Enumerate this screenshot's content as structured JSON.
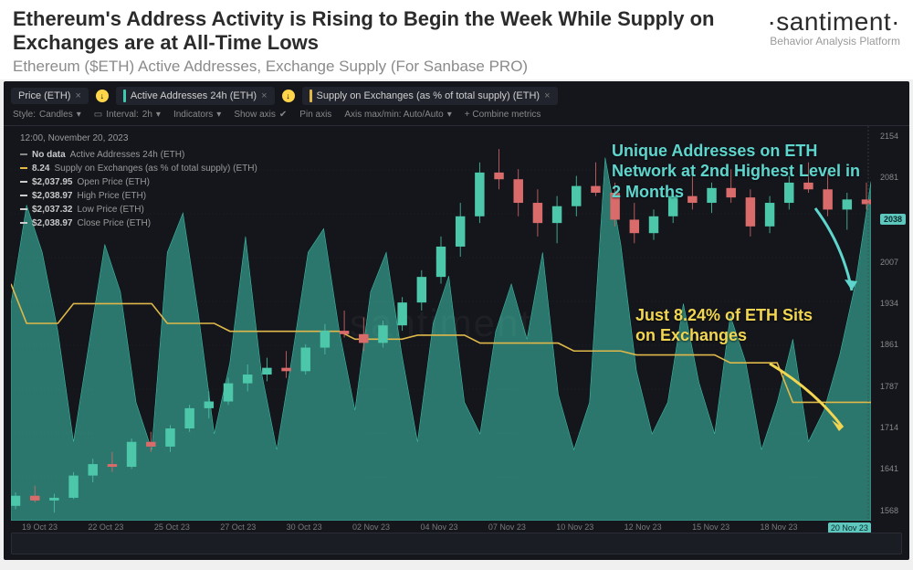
{
  "header": {
    "title": "Ethereum's Address Activity is Rising to Begin the Week While Supply on Exchanges are at All-Time Lows",
    "subtitle": "Ethereum ($ETH) Active Addresses, Exchange Supply (For Sanbase PRO)",
    "brand": "·santiment·",
    "brand_sub": "Behavior Analysis Platform"
  },
  "tabs": [
    {
      "label": "Price (ETH)",
      "color": "#3fc9b0"
    },
    {
      "label": "Active Addresses 24h (ETH)",
      "color": "#3fc9b0"
    },
    {
      "label": "Supply on Exchanges (as % of total supply) (ETH)",
      "color": "#e0b84a"
    }
  ],
  "toolbar": {
    "style_label": "Style:",
    "style_value": "Candles",
    "interval_label": "Interval:",
    "interval_value": "2h",
    "indicators": "Indicators",
    "show_axis": "Show axis",
    "pin_axis": "Pin axis",
    "axis_mm": "Axis max/min: Auto/Auto",
    "combine": "+ Combine metrics"
  },
  "tooltip": {
    "timestamp": "12:00, November 20, 2023",
    "rows": [
      {
        "key": "No data",
        "label": "Active Addresses 24h (ETH)",
        "color": "#888888"
      },
      {
        "key": "8.24",
        "label": "Supply on Exchanges (as % of total supply) (ETH)",
        "color": "#e0b84a"
      },
      {
        "key": "$2,037.95",
        "label": "Open Price (ETH)",
        "color": "#cccccc"
      },
      {
        "key": "$2,038.97",
        "label": "High Price (ETH)",
        "color": "#cccccc"
      },
      {
        "key": "$2,037.32",
        "label": "Low Price (ETH)",
        "color": "#cccccc"
      },
      {
        "key": "$2,038.97",
        "label": "Close Price (ETH)",
        "color": "#cccccc"
      }
    ]
  },
  "annotations": {
    "a1": "Unique Addresses on ETH Network at 2nd Highest Level in 2 Months",
    "a2": "Just 8.24% of ETH Sits on Exchanges"
  },
  "chart": {
    "type": "composite",
    "background_color": "#14161c",
    "grid_color": "#2a2d35",
    "y_ticks": [
      "2154",
      "2081",
      "2038",
      "2007",
      "1934",
      "1861",
      "1787",
      "1714",
      "1641",
      "1568"
    ],
    "y_current": "2038",
    "x_ticks": [
      "19 Oct 23",
      "22 Oct 23",
      "25 Oct 23",
      "27 Oct 23",
      "30 Oct 23",
      "02 Nov 23",
      "04 Nov 23",
      "07 Nov 23",
      "10 Nov 23",
      "12 Nov 23",
      "15 Nov 23",
      "18 Nov 23",
      "20 Nov 23"
    ],
    "addresses": {
      "name": "Active Addresses 24h",
      "color": "#3fc9b0",
      "fill_opacity": 0.55,
      "series": [
        55,
        80,
        68,
        48,
        20,
        45,
        70,
        58,
        30,
        18,
        68,
        78,
        52,
        22,
        40,
        72,
        38,
        18,
        42,
        68,
        74,
        48,
        28,
        58,
        68,
        42,
        20,
        50,
        62,
        30,
        22,
        48,
        60,
        46,
        68,
        32,
        18,
        30,
        92,
        70,
        38,
        22,
        30,
        55,
        35,
        22,
        52,
        40,
        18,
        30,
        46,
        20,
        28,
        42,
        60,
        86
      ]
    },
    "supply": {
      "name": "Supply on Exchanges %",
      "color": "#e0b84a",
      "line_width": 1.6,
      "series": [
        60,
        50,
        50,
        50,
        55,
        55,
        55,
        55,
        55,
        55,
        50,
        50,
        50,
        50,
        48,
        48,
        48,
        48,
        48,
        48,
        48,
        48,
        46,
        46,
        46,
        46,
        47,
        47,
        47,
        47,
        45,
        45,
        45,
        45,
        45,
        45,
        43,
        43,
        43,
        43,
        42,
        42,
        42,
        42,
        42,
        42,
        40,
        40,
        40,
        40,
        30,
        30,
        30,
        30,
        30,
        30
      ]
    },
    "price": {
      "name": "Price (ETH)",
      "up_color": "#4cc7aa",
      "down_color": "#d96b6b",
      "ylim": [
        1568,
        2154
      ],
      "candles": [
        [
          1590,
          1610,
          1585,
          1605
        ],
        [
          1605,
          1620,
          1595,
          1598
        ],
        [
          1598,
          1608,
          1580,
          1602
        ],
        [
          1602,
          1640,
          1600,
          1635
        ],
        [
          1635,
          1660,
          1625,
          1652
        ],
        [
          1652,
          1670,
          1640,
          1648
        ],
        [
          1648,
          1690,
          1645,
          1685
        ],
        [
          1685,
          1700,
          1670,
          1678
        ],
        [
          1678,
          1710,
          1670,
          1705
        ],
        [
          1705,
          1740,
          1700,
          1735
        ],
        [
          1735,
          1760,
          1720,
          1745
        ],
        [
          1745,
          1780,
          1740,
          1772
        ],
        [
          1772,
          1800,
          1760,
          1785
        ],
        [
          1785,
          1810,
          1775,
          1795
        ],
        [
          1795,
          1820,
          1780,
          1790
        ],
        [
          1790,
          1830,
          1785,
          1825
        ],
        [
          1825,
          1860,
          1815,
          1850
        ],
        [
          1850,
          1880,
          1840,
          1845
        ],
        [
          1845,
          1870,
          1820,
          1832
        ],
        [
          1832,
          1865,
          1825,
          1858
        ],
        [
          1858,
          1900,
          1850,
          1892
        ],
        [
          1892,
          1940,
          1880,
          1930
        ],
        [
          1930,
          1990,
          1920,
          1975
        ],
        [
          1975,
          2040,
          1960,
          2020
        ],
        [
          2020,
          2100,
          2010,
          2085
        ],
        [
          2085,
          2120,
          2060,
          2075
        ],
        [
          2075,
          2090,
          2020,
          2040
        ],
        [
          2040,
          2060,
          1990,
          2010
        ],
        [
          2010,
          2050,
          1980,
          2035
        ],
        [
          2035,
          2080,
          2020,
          2065
        ],
        [
          2065,
          2100,
          2050,
          2055
        ],
        [
          2055,
          2070,
          2005,
          2015
        ],
        [
          2015,
          2040,
          1980,
          1995
        ],
        [
          1995,
          2030,
          1985,
          2020
        ],
        [
          2020,
          2060,
          2010,
          2050
        ],
        [
          2050,
          2080,
          2030,
          2040
        ],
        [
          2040,
          2070,
          2025,
          2062
        ],
        [
          2062,
          2090,
          2040,
          2048
        ],
        [
          2048,
          2060,
          1990,
          2005
        ],
        [
          2005,
          2050,
          1995,
          2040
        ],
        [
          2040,
          2080,
          2030,
          2070
        ],
        [
          2070,
          2100,
          2055,
          2060
        ],
        [
          2060,
          2085,
          2020,
          2030
        ],
        [
          2030,
          2055,
          2000,
          2045
        ],
        [
          2045,
          2070,
          2030,
          2038
        ]
      ]
    },
    "watermark": "santiment"
  },
  "arrows": {
    "a1_color": "#5fd6cd",
    "a2_color": "#f2d652"
  }
}
